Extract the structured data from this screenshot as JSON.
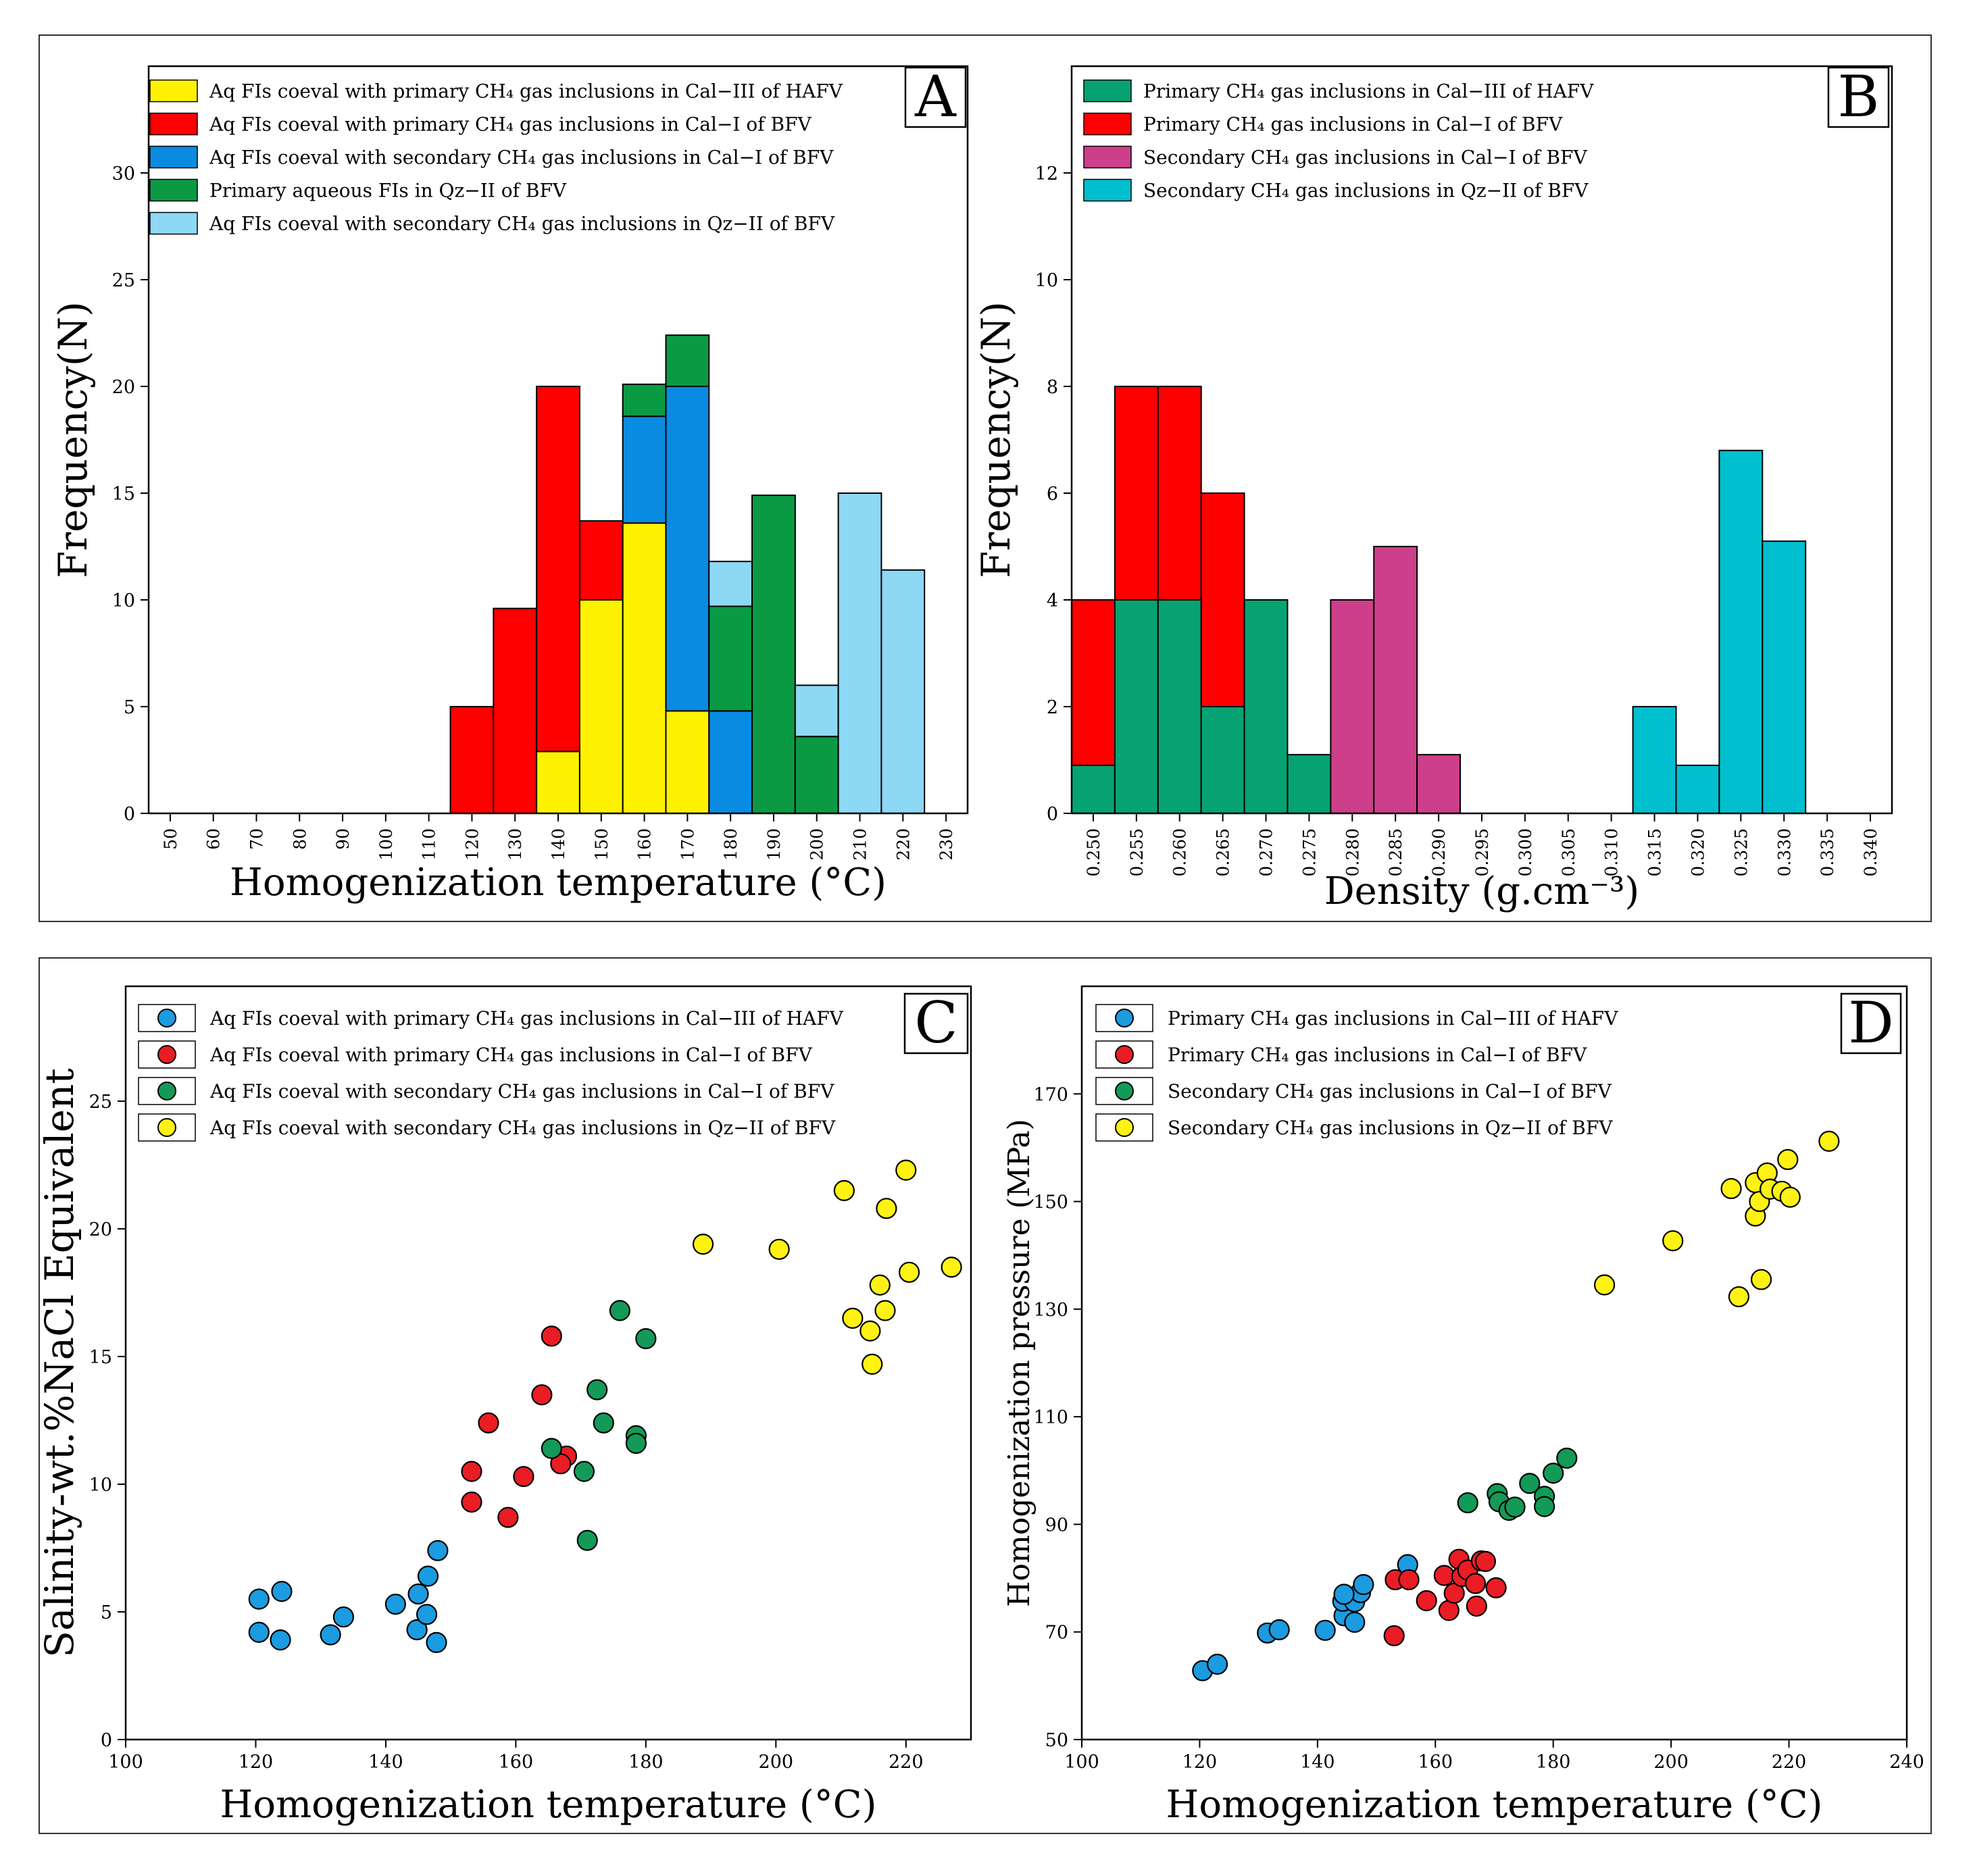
{
  "chart_data": [
    {
      "id": "A",
      "type": "bar",
      "stacked": true,
      "panel_label": "A",
      "title": "",
      "xlabel": "Homogenization temperature (°C)",
      "ylabel": "Frequency(N)",
      "ylim": [
        0,
        35
      ],
      "yticks": [
        0,
        5,
        10,
        15,
        20,
        25,
        30
      ],
      "xlim": [
        45,
        235
      ],
      "xticks": [
        50,
        60,
        70,
        80,
        90,
        100,
        110,
        120,
        130,
        140,
        150,
        160,
        170,
        180,
        190,
        200,
        210,
        220,
        230
      ],
      "bin_width": 10,
      "legend": {
        "position": "top-left",
        "entries": [
          {
            "label": "Aq FIs coeval with primary CH₄ gas inclusions in Cal−III of HAFV",
            "color": "#fff200"
          },
          {
            "label": "Aq FIs coeval with primary CH₄ gas inclusions in Cal−I of BFV",
            "color": "#ff0000"
          },
          {
            "label": "Aq FIs coeval with secondary CH₄ gas inclusions in Cal−I of BFV",
            "color": "#0a8be2"
          },
          {
            "label": "Primary aqueous FIs in Qz−II of BFV",
            "color": "#0b9a44"
          },
          {
            "label": "Aq FIs coeval with secondary CH₄ gas inclusions in Qz−II of BFV",
            "color": "#8dd8f5"
          }
        ]
      },
      "stacks": [
        {
          "center": 120,
          "segments": [
            {
              "series": 1,
              "value": 5
            }
          ]
        },
        {
          "center": 130,
          "segments": [
            {
              "series": 1,
              "value": 9.6
            }
          ]
        },
        {
          "center": 140,
          "segments": [
            {
              "series": 0,
              "value": 2.9
            },
            {
              "series": 1,
              "value": 17.1
            }
          ]
        },
        {
          "center": 150,
          "segments": [
            {
              "series": 0,
              "value": 10
            },
            {
              "series": 1,
              "value": 3.7
            }
          ]
        },
        {
          "center": 160,
          "segments": [
            {
              "series": 0,
              "value": 13.6
            },
            {
              "series": 2,
              "value": 5
            },
            {
              "series": 3,
              "value": 1.5
            }
          ]
        },
        {
          "center": 170,
          "segments": [
            {
              "series": 0,
              "value": 4.8
            },
            {
              "series": 2,
              "value": 15.2
            },
            {
              "series": 3,
              "value": 2.4
            }
          ]
        },
        {
          "center": 180,
          "segments": [
            {
              "series": 2,
              "value": 4.8
            },
            {
              "series": 3,
              "value": 4.9
            },
            {
              "series": 4,
              "value": 2.1
            }
          ]
        },
        {
          "center": 190,
          "segments": [
            {
              "series": 3,
              "value": 14.9
            }
          ]
        },
        {
          "center": 200,
          "segments": [
            {
              "series": 3,
              "value": 3.6
            },
            {
              "series": 4,
              "value": 2.4
            }
          ]
        },
        {
          "center": 210,
          "segments": [
            {
              "series": 4,
              "value": 15
            }
          ]
        },
        {
          "center": 220,
          "segments": [
            {
              "series": 4,
              "value": 11.4
            }
          ]
        }
      ]
    },
    {
      "id": "B",
      "type": "bar",
      "stacked": true,
      "panel_label": "B",
      "title": "",
      "xlabel": "Density (g.cm⁻³)",
      "ylabel": "Frequency(N)",
      "ylim": [
        0,
        14
      ],
      "yticks": [
        0,
        2,
        4,
        6,
        8,
        10,
        12
      ],
      "xlim": [
        0.2475,
        0.3425
      ],
      "xticks": [
        "0.250",
        "0.255",
        "0.260",
        "0.265",
        "0.270",
        "0.275",
        "0.280",
        "0.285",
        "0.290",
        "0.295",
        "0.300",
        "0.305",
        "0.310",
        "0.315",
        "0.320",
        "0.325",
        "0.330",
        "0.335",
        "0.340"
      ],
      "bin_width": 0.005,
      "legend": {
        "position": "top-left",
        "entries": [
          {
            "label": "Primary CH₄ gas inclusions in Cal−III of HAFV",
            "color": "#06a272"
          },
          {
            "label": "Primary CH₄ gas inclusions in Cal−I of BFV",
            "color": "#ff0000"
          },
          {
            "label": "Secondary CH₄ gas inclusions in Cal−I of BFV",
            "color": "#cd3f8a"
          },
          {
            "label": "Secondary CH₄ gas inclusions in Qz−II of BFV",
            "color": "#00bfcf"
          }
        ]
      },
      "stacks": [
        {
          "center": 0.25,
          "segments": [
            {
              "series": 0,
              "value": 0.9
            },
            {
              "series": 1,
              "value": 3.1
            }
          ]
        },
        {
          "center": 0.255,
          "segments": [
            {
              "series": 0,
              "value": 4
            },
            {
              "series": 1,
              "value": 4
            }
          ]
        },
        {
          "center": 0.26,
          "segments": [
            {
              "series": 0,
              "value": 4
            },
            {
              "series": 1,
              "value": 4
            }
          ]
        },
        {
          "center": 0.265,
          "segments": [
            {
              "series": 0,
              "value": 2
            },
            {
              "series": 1,
              "value": 4
            }
          ]
        },
        {
          "center": 0.27,
          "segments": [
            {
              "series": 0,
              "value": 4
            }
          ]
        },
        {
          "center": 0.275,
          "segments": [
            {
              "series": 0,
              "value": 1.1
            }
          ]
        },
        {
          "center": 0.28,
          "segments": [
            {
              "series": 2,
              "value": 4
            }
          ]
        },
        {
          "center": 0.285,
          "segments": [
            {
              "series": 2,
              "value": 5
            }
          ]
        },
        {
          "center": 0.29,
          "segments": [
            {
              "series": 2,
              "value": 1.1
            }
          ]
        },
        {
          "center": 0.315,
          "segments": [
            {
              "series": 3,
              "value": 2
            }
          ]
        },
        {
          "center": 0.32,
          "segments": [
            {
              "series": 3,
              "value": 0.9
            }
          ]
        },
        {
          "center": 0.325,
          "segments": [
            {
              "series": 3,
              "value": 6.8
            }
          ]
        },
        {
          "center": 0.33,
          "segments": [
            {
              "series": 3,
              "value": 5.1
            }
          ]
        }
      ]
    },
    {
      "id": "C",
      "type": "scatter",
      "panel_label": "C",
      "title": "",
      "xlabel": "Homogenization temperature (°C)",
      "ylabel": "Salinity-wt.%NaCl Equivalent",
      "xlim": [
        100,
        230
      ],
      "ylim": [
        0,
        29.5
      ],
      "xticks": [
        100,
        120,
        140,
        160,
        180,
        200,
        220
      ],
      "yticks": [
        0,
        5,
        10,
        15,
        20,
        25
      ],
      "legend": {
        "position": "top-left",
        "entries": [
          {
            "label": "Aq FIs coeval with primary CH₄ gas inclusions in Cal−III of HAFV",
            "color": "#1b9be0"
          },
          {
            "label": "Aq FIs coeval with primary CH₄ gas inclusions in Cal−I of BFV",
            "color": "#ea1c24"
          },
          {
            "label": "Aq FIs coeval with secondary CH₄ gas inclusions in Cal−I of BFV",
            "color": "#139a58"
          },
          {
            "label": "Aq FIs coeval with secondary CH₄ gas inclusions in Qz−II of BFV",
            "color": "#fdf212"
          }
        ]
      },
      "series": [
        {
          "name": "Aq FIs coeval with primary CH₄ gas inclusions in Cal−III of HAFV",
          "color": "#1b9be0",
          "points": [
            [
              120.5,
              5.5
            ],
            [
              124,
              5.8
            ],
            [
              120.5,
              4.2
            ],
            [
              123.8,
              3.9
            ],
            [
              131.5,
              4.1
            ],
            [
              133.5,
              4.8
            ],
            [
              141.5,
              5.3
            ],
            [
              145,
              5.7
            ],
            [
              146.5,
              6.4
            ],
            [
              148,
              7.4
            ],
            [
              144.8,
              4.3
            ],
            [
              146.3,
              4.9
            ],
            [
              147.8,
              3.8
            ]
          ]
        },
        {
          "name": "Aq FIs coeval with primary CH₄ gas inclusions in Cal−I of BFV",
          "color": "#ea1c24",
          "points": [
            [
              165.5,
              15.8
            ],
            [
              164,
              13.5
            ],
            [
              155.8,
              12.4
            ],
            [
              153.2,
              10.5
            ],
            [
              153.2,
              9.3
            ],
            [
              161.2,
              10.3
            ],
            [
              167.8,
              11.1
            ],
            [
              166.9,
              10.8
            ],
            [
              158.8,
              8.7
            ]
          ]
        },
        {
          "name": "Aq FIs coeval with secondary CH₄ gas inclusions in Cal−I of BFV",
          "color": "#139a58",
          "points": [
            [
              176,
              16.8
            ],
            [
              180,
              15.7
            ],
            [
              172.5,
              13.7
            ],
            [
              173.5,
              12.4
            ],
            [
              178.5,
              11.9
            ],
            [
              178.5,
              11.6
            ],
            [
              165.5,
              11.4
            ],
            [
              170.5,
              10.5
            ],
            [
              171,
              7.8
            ]
          ]
        },
        {
          "name": "Aq FIs coeval with secondary CH₄ gas inclusions in Qz−II of BFV",
          "color": "#fdf212",
          "points": [
            [
              220,
              22.3
            ],
            [
              210.5,
              21.5
            ],
            [
              217,
              20.8
            ],
            [
              188.8,
              19.4
            ],
            [
              200.5,
              19.2
            ],
            [
              220.5,
              18.3
            ],
            [
              227,
              18.5
            ],
            [
              216,
              17.8
            ],
            [
              211.8,
              16.5
            ],
            [
              216.8,
              16.8
            ],
            [
              214.5,
              16
            ],
            [
              214.8,
              14.7
            ]
          ]
        }
      ]
    },
    {
      "id": "D",
      "type": "scatter",
      "panel_label": "D",
      "title": "",
      "xlabel": "Homogenization temperature (°C)",
      "ylabel": "Homogenization pressure (MPa)",
      "xlim": [
        100,
        240
      ],
      "ylim": [
        50,
        190
      ],
      "xticks": [
        100,
        120,
        140,
        160,
        180,
        200,
        220,
        240
      ],
      "yticks": [
        50,
        70,
        90,
        110,
        130,
        150,
        170
      ],
      "legend": {
        "position": "top-left",
        "entries": [
          {
            "label": "Primary CH₄ gas inclusions in Cal−III of HAFV",
            "color": "#1b9be0"
          },
          {
            "label": "Primary CH₄ gas inclusions in Cal−I of BFV",
            "color": "#ea1c24"
          },
          {
            "label": "Secondary CH₄ gas inclusions in Cal−I of BFV",
            "color": "#139a58"
          },
          {
            "label": "Secondary CH₄ gas inclusions in Qz−II of BFV",
            "color": "#fdf212"
          }
        ]
      },
      "series": [
        {
          "name": "Primary CH₄ gas inclusions in Cal−III of HAFV",
          "color": "#1b9be0",
          "points": [
            [
              120.5,
              62.8
            ],
            [
              123,
              64
            ],
            [
              131.5,
              69.8
            ],
            [
              133.5,
              70.4
            ],
            [
              141.3,
              70.3
            ],
            [
              144.5,
              73
            ],
            [
              144.3,
              75.7
            ],
            [
              146.3,
              71.8
            ],
            [
              146.3,
              75.6
            ],
            [
              147.3,
              77.3
            ],
            [
              147.8,
              78.8
            ],
            [
              155.3,
              82.5
            ],
            [
              144.5,
              77
            ]
          ]
        },
        {
          "name": "Primary CH₄ gas inclusions in Cal−I of BFV",
          "color": "#ea1c24",
          "points": [
            [
              153,
              69.3
            ],
            [
              153.2,
              79.7
            ],
            [
              155.5,
              79.7
            ],
            [
              158.5,
              75.8
            ],
            [
              161.5,
              80.5
            ],
            [
              162.3,
              74
            ],
            [
              163.2,
              77.2
            ],
            [
              164,
              83.5
            ],
            [
              164.5,
              80.3
            ],
            [
              165.5,
              81.5
            ],
            [
              166.8,
              79
            ],
            [
              167,
              74.8
            ],
            [
              167.8,
              83.2
            ],
            [
              168.5,
              83.1
            ],
            [
              170.3,
              78.2
            ]
          ]
        },
        {
          "name": "Secondary CH₄ gas inclusions in Cal−I of BFV",
          "color": "#139a58",
          "points": [
            [
              165.5,
              94
            ],
            [
              170.5,
              95.7
            ],
            [
              170.8,
              94.2
            ],
            [
              172.5,
              92.6
            ],
            [
              173.5,
              93.2
            ],
            [
              176,
              97.6
            ],
            [
              178.5,
              95.2
            ],
            [
              178.5,
              93.3
            ],
            [
              180,
              99.5
            ],
            [
              182.3,
              102.3
            ]
          ]
        },
        {
          "name": "Secondary CH₄ gas inclusions in Qz−II of BFV",
          "color": "#fdf212",
          "points": [
            [
              188.7,
              134.5
            ],
            [
              200.3,
              142.7
            ],
            [
              210.2,
              152.4
            ],
            [
              211.5,
              132.3
            ],
            [
              214.3,
              147.3
            ],
            [
              214.3,
              153.5
            ],
            [
              215,
              150
            ],
            [
              215.3,
              135.5
            ],
            [
              216.3,
              155.3
            ],
            [
              216.8,
              152.3
            ],
            [
              218.8,
              151.9
            ],
            [
              219.8,
              157.8
            ],
            [
              220.2,
              150.8
            ],
            [
              226.8,
              161.2
            ]
          ]
        }
      ]
    }
  ]
}
